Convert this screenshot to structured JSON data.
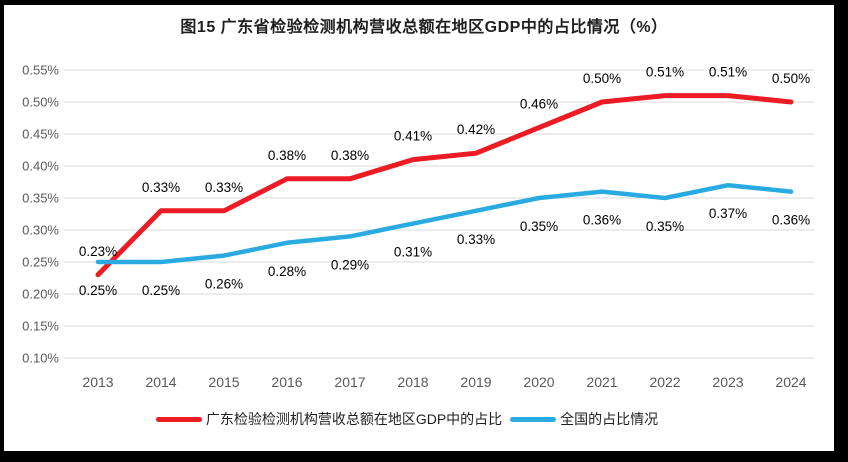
{
  "chart_data": {
    "type": "line",
    "title": "图15  广东省检验检测机构营收总额在地区GDP中的占比情况（%）",
    "categories": [
      "2013",
      "2014",
      "2015",
      "2016",
      "2017",
      "2018",
      "2019",
      "2020",
      "2021",
      "2022",
      "2023",
      "2024"
    ],
    "series": [
      {
        "name": "广东检验检测机构营收总额在地区GDP中的占比",
        "color": "#ed1c24",
        "values": [
          0.23,
          0.33,
          0.33,
          0.38,
          0.38,
          0.41,
          0.42,
          0.46,
          0.5,
          0.51,
          0.51,
          0.5
        ],
        "data_labels": [
          "0.23%",
          "0.33%",
          "0.33%",
          "0.38%",
          "0.38%",
          "0.41%",
          "0.42%",
          "0.46%",
          "0.50%",
          "0.51%",
          "0.51%",
          "0.50%"
        ],
        "label_position": "above"
      },
      {
        "name": "全国的占比情况",
        "color": "#29abe2",
        "values": [
          0.25,
          0.25,
          0.26,
          0.28,
          0.29,
          0.31,
          0.33,
          0.35,
          0.36,
          0.35,
          0.37,
          0.36
        ],
        "data_labels": [
          "0.25%",
          "0.25%",
          "0.26%",
          "0.28%",
          "0.29%",
          "0.31%",
          "0.33%",
          "0.35%",
          "0.36%",
          "0.35%",
          "0.37%",
          "0.36%"
        ],
        "label_position": "below"
      }
    ],
    "ylim": [
      0.1,
      0.55
    ],
    "ytick_step": 0.05,
    "ytick_labels": [
      "0.55%",
      "0.50%",
      "0.45%",
      "0.40%",
      "0.35%",
      "0.30%",
      "0.25%",
      "0.20%",
      "0.15%",
      "0.10%"
    ],
    "xlabel": "",
    "ylabel": "",
    "grid": "horizontal",
    "legend_position": "bottom",
    "colors": {
      "grid_line": "#d9d9d9",
      "axis_label": "#595959",
      "data_label": "#000000",
      "title": "#1f1f1f",
      "plot_background": "#ffffff",
      "outer_border": "#000000"
    }
  }
}
